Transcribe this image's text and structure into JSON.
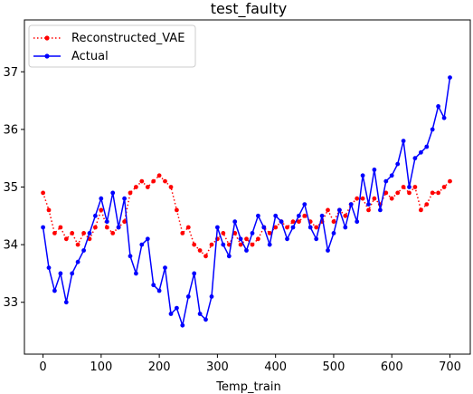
{
  "chart_data": {
    "type": "line",
    "title": "test_faulty",
    "xlabel": "Temp_train",
    "ylabel": "",
    "xlim": [
      -32,
      735
    ],
    "ylim": [
      32.1,
      37.9
    ],
    "xticks": [
      0,
      100,
      200,
      300,
      400,
      500,
      600,
      700
    ],
    "yticks": [
      33,
      34,
      35,
      36,
      37
    ],
    "grid": false,
    "legend": {
      "placement": "top-left",
      "entries": [
        "Reconstructed_VAE",
        "Actual"
      ]
    },
    "series": [
      {
        "name": "Reconstructed_VAE",
        "color": "#ff0000",
        "line_style": "dotted",
        "marker": "circle",
        "x": [
          0,
          10,
          20,
          30,
          40,
          50,
          60,
          70,
          80,
          90,
          100,
          110,
          120,
          130,
          140,
          150,
          160,
          170,
          180,
          190,
          200,
          210,
          220,
          230,
          240,
          250,
          260,
          270,
          280,
          290,
          300,
          310,
          320,
          330,
          340,
          350,
          360,
          370,
          380,
          390,
          400,
          410,
          420,
          430,
          440,
          450,
          460,
          470,
          480,
          490,
          500,
          510,
          520,
          530,
          540,
          550,
          560,
          570,
          580,
          590,
          600,
          610,
          620,
          630,
          640,
          650,
          660,
          670,
          680,
          690,
          700
        ],
        "y": [
          34.9,
          34.6,
          34.2,
          34.3,
          34.1,
          34.2,
          34.0,
          34.2,
          34.1,
          34.3,
          34.6,
          34.3,
          34.2,
          34.3,
          34.4,
          34.9,
          35.0,
          35.1,
          35.0,
          35.1,
          35.2,
          35.1,
          35.0,
          34.6,
          34.2,
          34.3,
          34.0,
          33.9,
          33.8,
          34.0,
          34.1,
          34.2,
          34.0,
          34.2,
          34.0,
          34.1,
          34.0,
          34.1,
          34.3,
          34.2,
          34.3,
          34.4,
          34.3,
          34.4,
          34.4,
          34.5,
          34.4,
          34.3,
          34.4,
          34.6,
          34.4,
          34.6,
          34.5,
          34.7,
          34.8,
          34.8,
          34.6,
          34.8,
          34.7,
          34.9,
          34.8,
          34.9,
          35.0,
          34.9,
          35.0,
          34.6,
          34.7,
          34.9,
          34.9,
          35.0,
          35.1
        ]
      },
      {
        "name": "Actual",
        "color": "#0000ff",
        "line_style": "solid",
        "marker": "circle",
        "x": [
          0,
          10,
          20,
          30,
          40,
          50,
          60,
          70,
          80,
          90,
          100,
          110,
          120,
          130,
          140,
          150,
          160,
          170,
          180,
          190,
          200,
          210,
          220,
          230,
          240,
          250,
          260,
          270,
          280,
          290,
          300,
          310,
          320,
          330,
          340,
          350,
          360,
          370,
          380,
          390,
          400,
          410,
          420,
          430,
          440,
          450,
          460,
          470,
          480,
          490,
          500,
          510,
          520,
          530,
          540,
          550,
          560,
          570,
          580,
          590,
          600,
          610,
          620,
          630,
          640,
          650,
          660,
          670,
          680,
          690,
          700
        ],
        "y": [
          34.3,
          33.6,
          33.2,
          33.5,
          33.0,
          33.5,
          33.7,
          33.9,
          34.2,
          34.5,
          34.8,
          34.4,
          34.9,
          34.3,
          34.8,
          33.8,
          33.5,
          34.0,
          34.1,
          33.3,
          33.2,
          33.6,
          32.8,
          32.9,
          32.6,
          33.1,
          33.5,
          32.8,
          32.7,
          33.1,
          34.3,
          34.0,
          33.8,
          34.4,
          34.1,
          33.9,
          34.2,
          34.5,
          34.3,
          34.0,
          34.5,
          34.4,
          34.1,
          34.3,
          34.5,
          34.7,
          34.3,
          34.1,
          34.5,
          33.9,
          34.2,
          34.6,
          34.3,
          34.7,
          34.4,
          35.2,
          34.7,
          35.3,
          34.6,
          35.1,
          35.2,
          35.4,
          35.8,
          35.0,
          35.5,
          35.6,
          35.7,
          36.0,
          36.4,
          36.2,
          36.9
        ]
      }
    ]
  }
}
